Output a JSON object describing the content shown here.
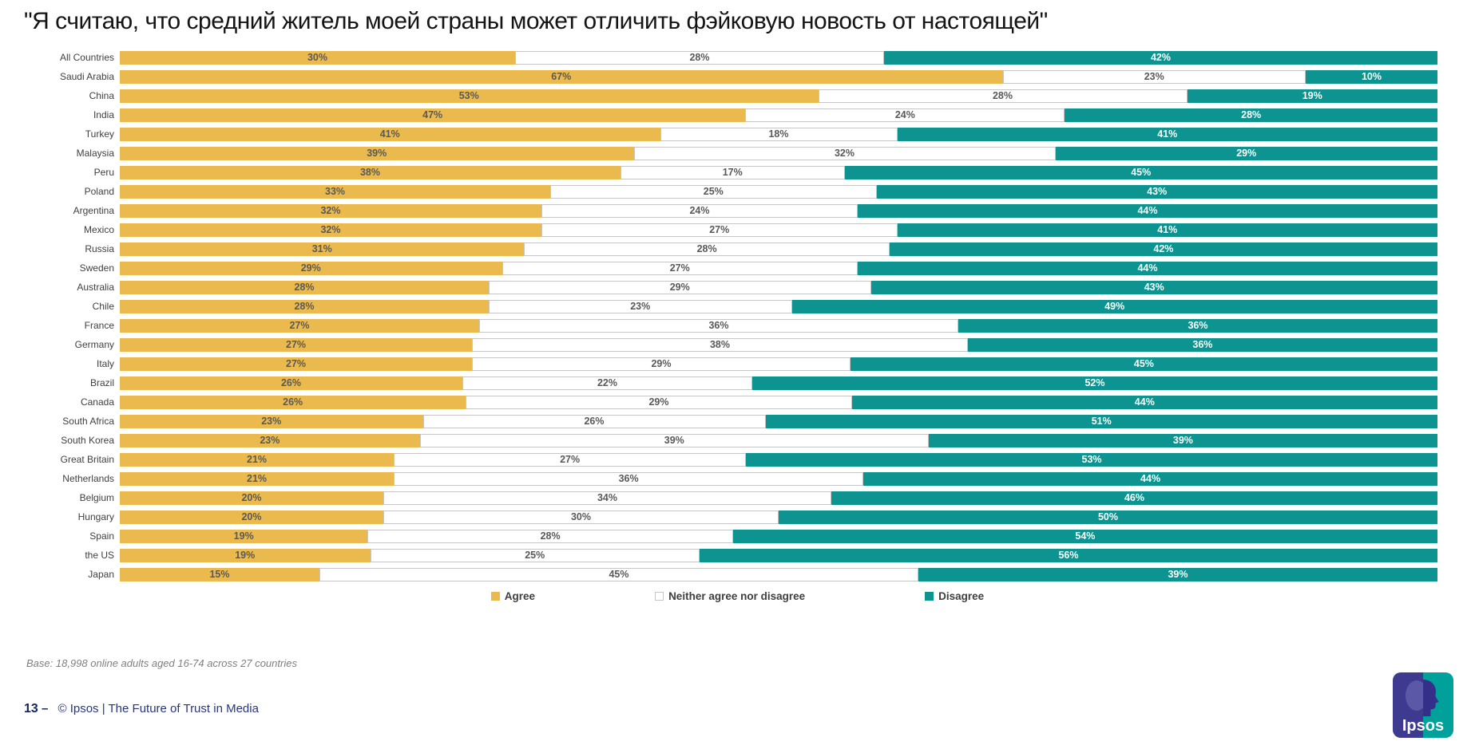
{
  "title": "\"Я считаю, что средний житель моей страны может отличить фэйковую новость от настоящей\"",
  "chart_data": {
    "type": "bar",
    "orientation": "horizontal-stacked",
    "normalized_to": "100%",
    "value_suffix": "%",
    "legend_position": "bottom",
    "categories": [
      "All Countries",
      "Saudi Arabia",
      "China",
      "India",
      "Turkey",
      "Malaysia",
      "Peru",
      "Poland",
      "Argentina",
      "Mexico",
      "Russia",
      "Sweden",
      "Australia",
      "Chile",
      "France",
      "Germany",
      "Italy",
      "Brazil",
      "Canada",
      "South Africa",
      "South Korea",
      "Great Britain",
      "Netherlands",
      "Belgium",
      "Hungary",
      "Spain",
      "the US",
      "Japan"
    ],
    "series": [
      {
        "name": "Agree",
        "color": "#EBBA4F",
        "label_color": "#595959",
        "values": [
          30,
          67,
          53,
          47,
          41,
          39,
          38,
          33,
          32,
          32,
          31,
          29,
          28,
          28,
          27,
          27,
          27,
          26,
          26,
          23,
          23,
          21,
          21,
          20,
          20,
          19,
          19,
          15
        ]
      },
      {
        "name": "Neither agree nor disagree",
        "color": "#FFFFFF",
        "border_color": "#C6C6C6",
        "label_color": "#595959",
        "values": [
          28,
          23,
          28,
          24,
          18,
          32,
          17,
          25,
          24,
          27,
          28,
          27,
          29,
          23,
          36,
          38,
          29,
          22,
          29,
          26,
          39,
          27,
          36,
          34,
          30,
          28,
          25,
          45
        ]
      },
      {
        "name": "Disagree",
        "color": "#0E9490",
        "label_color": "#FFFFFF",
        "values": [
          42,
          10,
          19,
          28,
          41,
          29,
          45,
          43,
          44,
          41,
          42,
          44,
          43,
          49,
          36,
          36,
          45,
          52,
          44,
          51,
          39,
          53,
          44,
          46,
          50,
          54,
          56,
          39
        ]
      }
    ]
  },
  "base_note": "Base: 18,998 online adults aged 16-74 across 27 countries",
  "footer": {
    "page_number": "13",
    "dash": "–",
    "copyright": "© Ipsos | The Future of Trust in Media"
  },
  "logo": {
    "text": "Ipsos",
    "left_color": "#3E3A8F",
    "right_color": "#00A09B",
    "hair_color": "#5B58A8",
    "face_color": "#34308A"
  }
}
